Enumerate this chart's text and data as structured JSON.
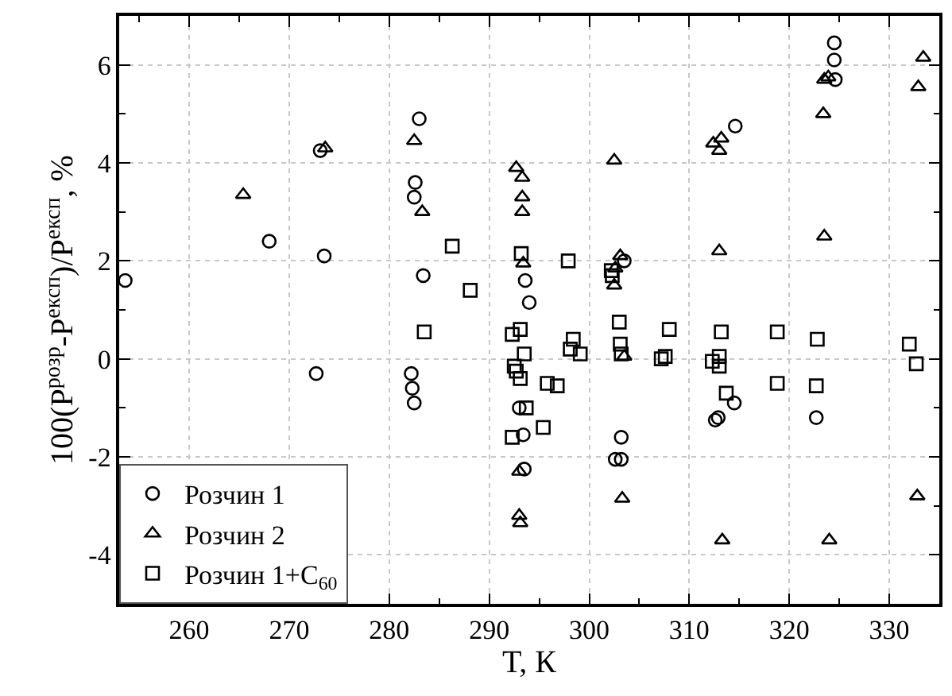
{
  "chart_data": {
    "type": "scatter",
    "xlabel": "T, К",
    "ylabel": "100(P$^{розр}$-P$^{експ}$)/P$^{експ}$, %",
    "xlim": [
      253,
      335
    ],
    "ylim": [
      -5,
      7
    ],
    "xticks": [
      {
        "value": 255,
        "label": null
      },
      260,
      {
        "value": 265,
        "label": null
      },
      270,
      {
        "value": 275,
        "label": null
      },
      280,
      {
        "value": 285,
        "label": null
      },
      290,
      {
        "value": 295,
        "label": null
      },
      300,
      {
        "value": 305,
        "label": null
      },
      310,
      {
        "value": 315,
        "label": null
      },
      320,
      {
        "value": 325,
        "label": null
      },
      330,
      {
        "value": 335,
        "label": null
      }
    ],
    "yticks": [
      {
        "value": -5,
        "label": null
      },
      -4,
      {
        "value": -3,
        "label": null
      },
      -2,
      {
        "value": -1,
        "label": null
      },
      0,
      {
        "value": 1,
        "label": null
      },
      2,
      {
        "value": 3,
        "label": null
      },
      4,
      {
        "value": 5,
        "label": null
      },
      6,
      {
        "value": 7,
        "label": null
      }
    ],
    "grid": true,
    "legend": "bottom left",
    "series": [
      {
        "name": "Розчин 1",
        "color": "#000000",
        "marker": "circle",
        "x": [
          253.6,
          268.0,
          273.5,
          273.1,
          272.7,
          283.0,
          282.6,
          282.5,
          283.4,
          282.2,
          282.3,
          282.5,
          293.6,
          294.0,
          293.0,
          293.4,
          293.5,
          303.2,
          302.6,
          303.2,
          303.5,
          312.9,
          314.5,
          312.6,
          314.6,
          324.5,
          324.5,
          324.6,
          322.7
        ],
        "values": [
          1.6,
          2.4,
          2.1,
          4.25,
          -0.3,
          4.9,
          3.6,
          3.3,
          1.7,
          -0.3,
          -0.6,
          -0.9,
          1.6,
          1.15,
          -1.0,
          -1.55,
          -2.25,
          -1.6,
          -2.05,
          -2.05,
          2.0,
          -1.2,
          -0.9,
          -1.25,
          4.75,
          6.45,
          6.1,
          5.7,
          -1.2
        ]
      },
      {
        "name": "Розчин 2",
        "color": "#000000",
        "marker": "triangle",
        "x": [
          265.4,
          273.6,
          282.5,
          283.3,
          292.7,
          293.3,
          293.3,
          293.3,
          293.4,
          293.0,
          293.0,
          293.1,
          302.5,
          303.1,
          302.6,
          302.5,
          303.3,
          303.5,
          312.4,
          313.2,
          313.0,
          313.0,
          313.3,
          323.5,
          323.9,
          323.4,
          323.5,
          324.0,
          333.4,
          332.9,
          332.8
        ],
        "values": [
          3.35,
          4.3,
          4.45,
          3.0,
          3.9,
          3.7,
          3.3,
          3.0,
          1.95,
          -2.3,
          -3.2,
          -3.35,
          4.05,
          2.1,
          1.85,
          1.5,
          -2.85,
          0.05,
          4.4,
          4.5,
          4.25,
          2.2,
          -3.7,
          5.7,
          5.75,
          5.0,
          2.5,
          -3.7,
          6.15,
          5.55,
          -2.8
        ]
      },
      {
        "name": "Розчин 1+C$_{60}$",
        "color": "#000000",
        "marker": "square",
        "x": [
          286.3,
          288.1,
          283.5,
          293.2,
          292.3,
          293.1,
          293.5,
          292.5,
          292.7,
          293.1,
          292.3,
          293.7,
          295.8,
          296.8,
          295.4,
          297.9,
          298.4,
          298.1,
          299.1,
          302.2,
          302.3,
          303.0,
          303.1,
          303.2,
          308.0,
          307.2,
          307.6,
          313.2,
          312.3,
          313.0,
          313.0,
          313.7,
          318.8,
          318.8,
          322.8,
          322.7,
          332.0,
          332.7
        ],
        "values": [
          2.3,
          1.4,
          0.55,
          2.15,
          0.5,
          0.6,
          0.1,
          -0.15,
          -0.25,
          -0.4,
          -1.6,
          -1.0,
          -0.5,
          -0.55,
          -1.4,
          2.0,
          0.4,
          0.2,
          0.1,
          1.8,
          1.7,
          0.75,
          0.3,
          0.1,
          0.6,
          0.0,
          0.05,
          0.55,
          -0.05,
          0.05,
          -0.15,
          -0.7,
          0.55,
          -0.5,
          0.4,
          -0.55,
          0.3,
          -0.1
        ]
      }
    ]
  }
}
